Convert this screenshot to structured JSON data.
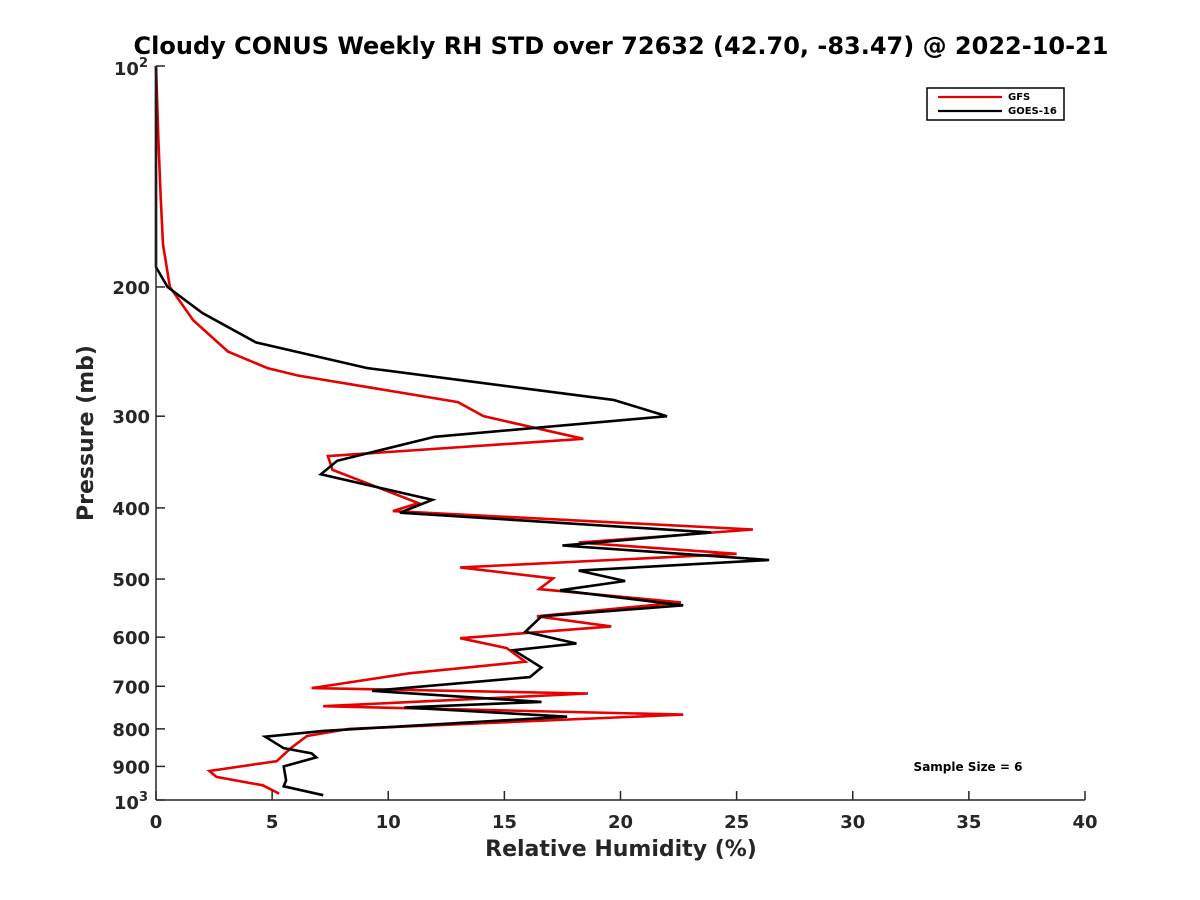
{
  "chart_data": {
    "type": "line",
    "title": "Cloudy CONUS Weekly RH STD over 72632 (42.70, -83.47) @ 2022-10-21",
    "xlabel": "Relative Humidity (%)",
    "ylabel": "Pressure (mb)",
    "xlim": [
      0,
      40
    ],
    "ylim": [
      100,
      1000
    ],
    "y_scale": "log",
    "y_reversed": true,
    "grid": false,
    "legend_position": "top-right",
    "x_ticks": [
      0,
      5,
      10,
      15,
      20,
      25,
      30,
      35,
      40
    ],
    "x_tick_labels": [
      "0",
      "5",
      "10",
      "15",
      "20",
      "25",
      "30",
      "35",
      "40"
    ],
    "y_ticks": [
      200,
      300,
      400,
      500,
      600,
      700,
      800,
      900
    ],
    "y_tick_labels": [
      "200",
      "300",
      "400",
      "500",
      "600",
      "700",
      "800",
      "900"
    ],
    "y_tick_major_labels": [
      {
        "value": 100,
        "base": "10",
        "exp": "2"
      },
      {
        "value": 1000,
        "base": "10",
        "exp": "3"
      }
    ],
    "annotation": "Sample Size = 6",
    "series": [
      {
        "name": "GFS",
        "color": "#e60000",
        "points": [
          [
            0.0,
            100
          ],
          [
            0.1,
            125
          ],
          [
            0.2,
            150
          ],
          [
            0.3,
            175
          ],
          [
            0.6,
            200
          ],
          [
            1.6,
            222
          ],
          [
            3.1,
            245
          ],
          [
            4.8,
            258
          ],
          [
            6.1,
            264
          ],
          [
            13.0,
            287
          ],
          [
            14.1,
            300
          ],
          [
            18.4,
            322
          ],
          [
            7.4,
            340
          ],
          [
            7.6,
            355
          ],
          [
            11.3,
            394
          ],
          [
            10.2,
            404
          ],
          [
            25.7,
            428
          ],
          [
            18.2,
            446
          ],
          [
            25.0,
            462
          ],
          [
            13.1,
            482
          ],
          [
            17.1,
            499
          ],
          [
            16.5,
            516
          ],
          [
            22.6,
            538
          ],
          [
            16.4,
            562
          ],
          [
            19.6,
            580
          ],
          [
            13.1,
            602
          ],
          [
            15.1,
            621
          ],
          [
            15.9,
            648
          ],
          [
            10.9,
            672
          ],
          [
            6.7,
            704
          ],
          [
            18.6,
            716
          ],
          [
            7.2,
            745
          ],
          [
            22.7,
            765
          ],
          [
            8.3,
            800
          ],
          [
            6.5,
            818
          ],
          [
            5.8,
            850
          ],
          [
            5.2,
            885
          ],
          [
            2.3,
            913
          ],
          [
            2.6,
            930
          ],
          [
            4.6,
            955
          ],
          [
            5.3,
            980
          ]
        ]
      },
      {
        "name": "GOES-16",
        "color": "#000000",
        "points": [
          [
            0.0,
            100
          ],
          [
            0.0,
            125
          ],
          [
            0.0,
            150
          ],
          [
            0.0,
            175
          ],
          [
            0.0,
            188
          ],
          [
            0.5,
            200
          ],
          [
            2.0,
            217
          ],
          [
            4.3,
            238
          ],
          [
            9.1,
            258
          ],
          [
            19.7,
            285
          ],
          [
            22.0,
            300
          ],
          [
            12.0,
            320
          ],
          [
            7.8,
            345
          ],
          [
            7.1,
            360
          ],
          [
            11.9,
            390
          ],
          [
            10.5,
            406
          ],
          [
            23.9,
            432
          ],
          [
            17.5,
            450
          ],
          [
            26.4,
            471
          ],
          [
            18.2,
            487
          ],
          [
            20.2,
            503
          ],
          [
            17.4,
            518
          ],
          [
            22.7,
            543
          ],
          [
            16.6,
            562
          ],
          [
            15.9,
            590
          ],
          [
            18.1,
            612
          ],
          [
            15.4,
            625
          ],
          [
            16.6,
            660
          ],
          [
            16.1,
            680
          ],
          [
            9.3,
            710
          ],
          [
            16.6,
            735
          ],
          [
            10.7,
            748
          ],
          [
            17.7,
            770
          ],
          [
            7.2,
            805
          ],
          [
            4.7,
            820
          ],
          [
            5.5,
            850
          ],
          [
            6.7,
            864
          ],
          [
            6.9,
            875
          ],
          [
            5.5,
            900
          ],
          [
            5.6,
            940
          ],
          [
            5.5,
            958
          ],
          [
            7.2,
            985
          ]
        ]
      }
    ]
  }
}
